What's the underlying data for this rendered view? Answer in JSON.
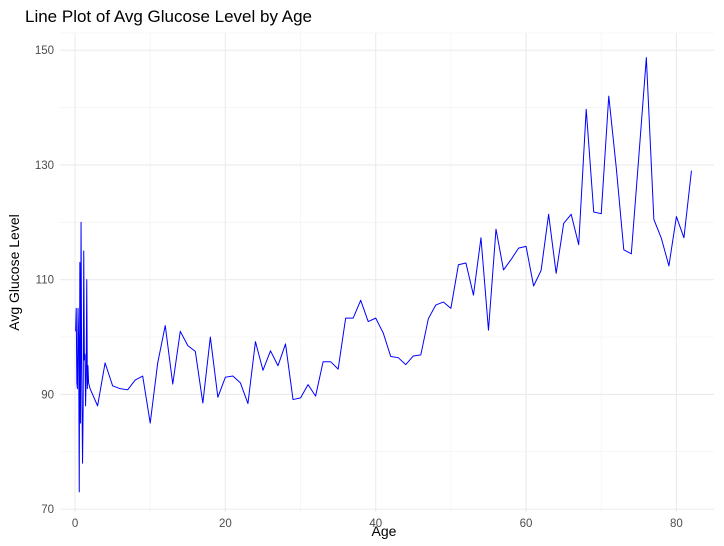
{
  "chart_data": {
    "type": "line",
    "title": "Line Plot of Avg Glucose Level by Age",
    "xlabel": "Age",
    "ylabel": "Avg Glucose Level",
    "xlim": [
      -2,
      85
    ],
    "ylim": [
      69.5,
      153
    ],
    "x_ticks": [
      0,
      20,
      40,
      60,
      80
    ],
    "y_ticks": [
      70,
      90,
      110,
      130,
      150
    ],
    "grid": true,
    "series": [
      {
        "color": "#0000ff",
        "x": [
          0.08,
          0.16,
          0.24,
          0.32,
          0.4,
          0.48,
          0.56,
          0.64,
          0.72,
          0.8,
          0.88,
          1.0,
          1.08,
          1.16,
          1.24,
          1.32,
          1.4,
          1.48,
          1.56,
          1.64,
          1.72,
          1.8,
          2,
          3,
          4,
          5,
          6,
          7,
          8,
          9,
          10,
          11,
          12,
          13,
          14,
          15,
          16,
          17,
          18,
          19,
          20,
          21,
          22,
          23,
          24,
          25,
          26,
          27,
          28,
          29,
          30,
          31,
          32,
          33,
          34,
          35,
          36,
          37,
          38,
          39,
          40,
          41,
          42,
          43,
          44,
          45,
          46,
          47,
          48,
          49,
          50,
          51,
          52,
          53,
          54,
          55,
          56,
          57,
          58,
          59,
          60,
          61,
          62,
          63,
          64,
          65,
          66,
          67,
          68,
          69,
          70,
          71,
          72,
          73,
          74,
          75,
          76,
          77,
          78,
          79,
          80,
          81,
          82
        ],
        "values": [
          101,
          105,
          92,
          91,
          105,
          100,
          73,
          113,
          85,
          120,
          95,
          78,
          88,
          115,
          96,
          97,
          88,
          93,
          110,
          91,
          95,
          92,
          91,
          88,
          95.5,
          91.5,
          91,
          90.8,
          92.5,
          93.2,
          85,
          95.5,
          102,
          91.8,
          101,
          98.5,
          97.5,
          88.5,
          100,
          89.5,
          93,
          93.2,
          92,
          88.4,
          99.2,
          94.2,
          97.6,
          95,
          98.8,
          89.1,
          89.4,
          91.7,
          89.7,
          95.7,
          95.7,
          94.4,
          103.3,
          103.3,
          106.4,
          102.7,
          103.3,
          100.7,
          96.6,
          96.4,
          95.2,
          96.7,
          96.9,
          103.2,
          105.6,
          106.1,
          105,
          112.6,
          112.9,
          107.3,
          117.3,
          101.2,
          118.8,
          111.7,
          113.5,
          115.5,
          115.8,
          108.9,
          111.6,
          121.4,
          111.1,
          119.8,
          121.4,
          116.1,
          139.7,
          121.8,
          121.5,
          142,
          129.5,
          115.2,
          114.5,
          131.5,
          148.7,
          120.5,
          117.2,
          112.4,
          121,
          117.3,
          129
        ]
      }
    ]
  }
}
